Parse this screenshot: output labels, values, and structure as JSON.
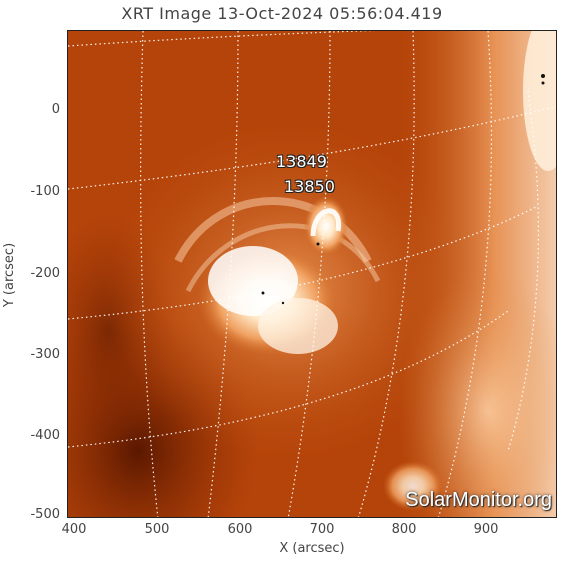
{
  "title": "XRT Image 13-Oct-2024 05:56:04.419",
  "axes": {
    "xlabel": "X (arcsec)",
    "ylabel": "Y (arcsec)",
    "xticks": [
      "400",
      "500",
      "600",
      "700",
      "800",
      "900"
    ],
    "yticks": [
      "0",
      "-100",
      "-200",
      "-300",
      "-400",
      "-500"
    ]
  },
  "active_regions": [
    {
      "label": "13849"
    },
    {
      "label": "13850"
    }
  ],
  "watermark": "SolarMonitor.org",
  "colors": {
    "background_dark": "#8a2a02",
    "mid": "#c85a12",
    "bright": "#ffffff",
    "grid": "#ffffff"
  }
}
